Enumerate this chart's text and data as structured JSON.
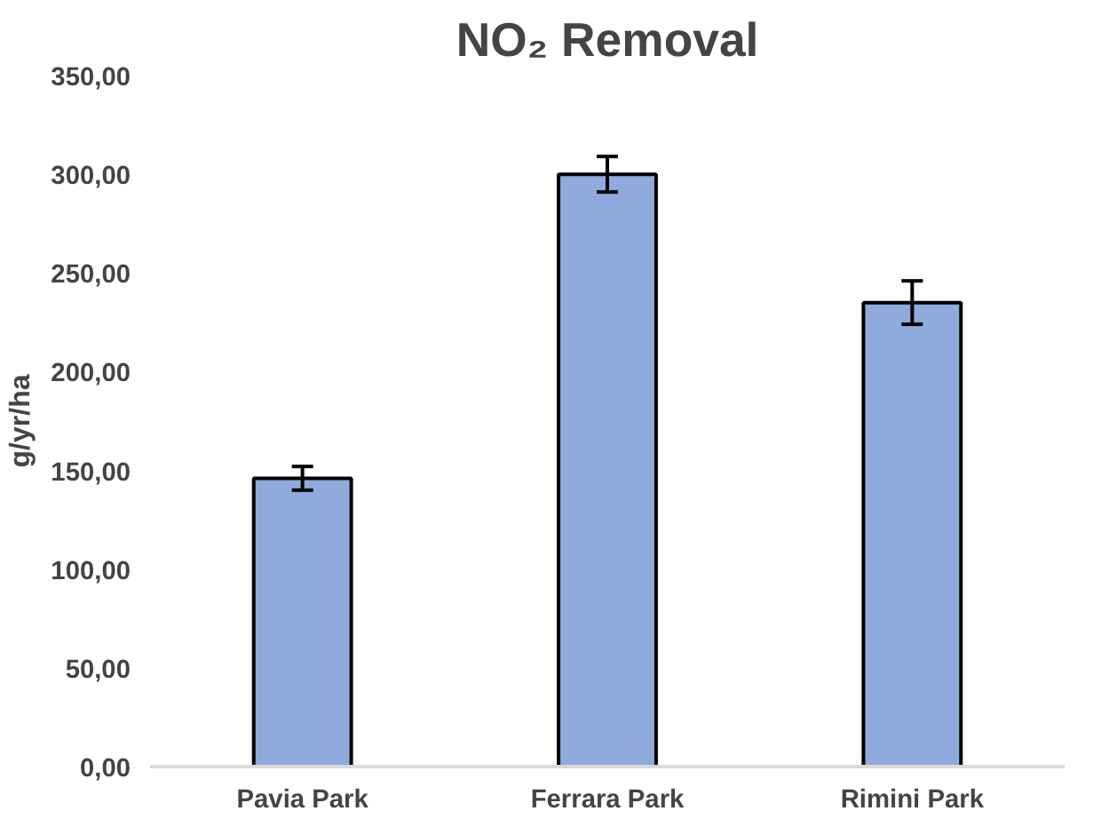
{
  "chart_data": {
    "type": "bar",
    "title": "NO₂ Removal",
    "ylabel": "g/yr/ha",
    "categories": [
      "Pavia Park",
      "Ferrara Park",
      "Rimini Park"
    ],
    "values": [
      146,
      300,
      235
    ],
    "errors": [
      6,
      9,
      11
    ],
    "color": "#8faadc",
    "ylim": [
      0,
      350
    ],
    "yticks": [
      {
        "value": 0,
        "label": "0,00"
      },
      {
        "value": 50,
        "label": "50,00"
      },
      {
        "value": 100,
        "label": "100,00"
      },
      {
        "value": 150,
        "label": "150,00"
      },
      {
        "value": 200,
        "label": "200,00"
      },
      {
        "value": 250,
        "label": "250,00"
      },
      {
        "value": 300,
        "label": "300,00"
      },
      {
        "value": 350,
        "label": "350,00"
      }
    ],
    "grid": false
  }
}
